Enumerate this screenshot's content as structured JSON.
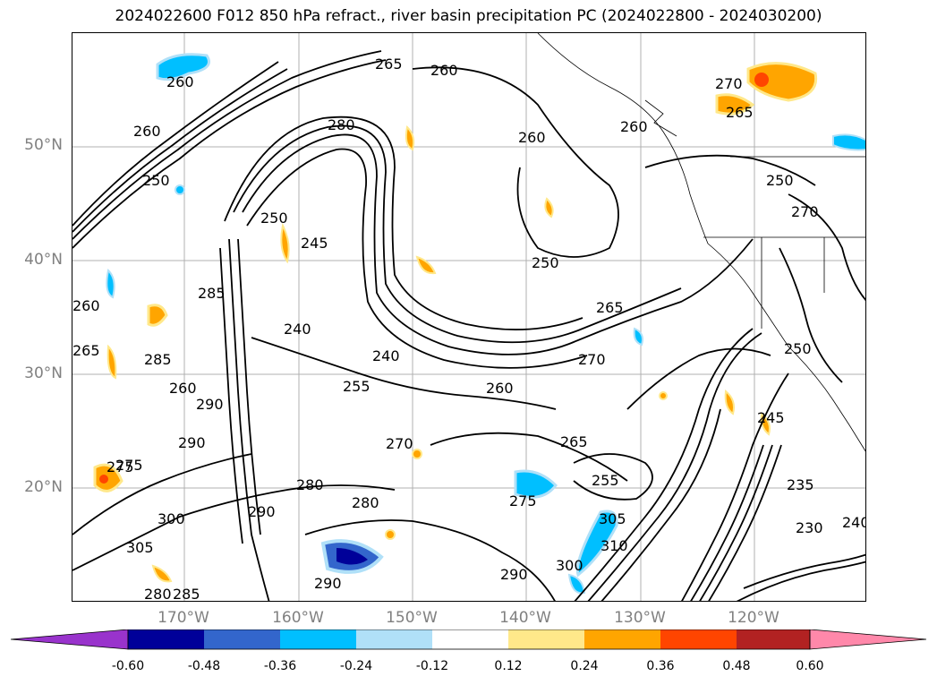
{
  "title": "2024022600 F012 850 hPa refract., river basin precipitation PC (2024022800 - 2024030200)",
  "lat_labels": [
    "50°N",
    "40°N",
    "30°N",
    "20°N"
  ],
  "lon_labels": [
    "170°W",
    "160°W",
    "150°W",
    "140°W",
    "130°W",
    "120°W"
  ],
  "contour_labels": [
    "265",
    "260",
    "270",
    "265",
    "260",
    "260",
    "260",
    "280",
    "260",
    "250",
    "250",
    "270",
    "250",
    "250",
    "245",
    "285",
    "265",
    "260",
    "265",
    "240",
    "285",
    "270",
    "240",
    "255",
    "250",
    "260",
    "245",
    "270",
    "290",
    "265",
    "255",
    "275",
    "280",
    "280",
    "275",
    "290",
    "235",
    "230",
    "300",
    "305",
    "310",
    "240",
    "290",
    "280",
    "285",
    "300",
    "290",
    "260",
    "275",
    "290",
    "305"
  ],
  "colorbar": {
    "ticks": [
      "-0.60",
      "-0.48",
      "-0.36",
      "-0.24",
      "-0.12",
      "0.12",
      "0.24",
      "0.36",
      "0.48",
      "0.60"
    ],
    "colors": [
      "#9933cc",
      "#000099",
      "#3366cc",
      "#00bfff",
      "#b0e0f8",
      "#ffffff",
      "#ffe88a",
      "#ffa500",
      "#ff4500",
      "#b22222",
      "#ff88aa"
    ]
  }
}
